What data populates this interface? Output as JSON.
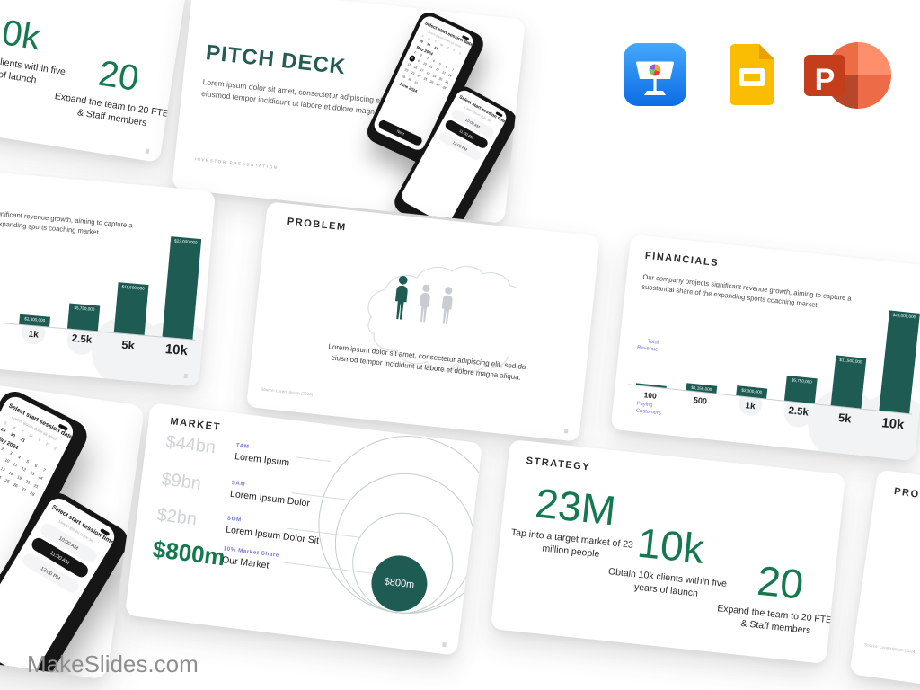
{
  "brand": {
    "label": "MakeSlides.com"
  },
  "app_icons": [
    {
      "name": "apple-keynote"
    },
    {
      "name": "google-slides"
    },
    {
      "name": "microsoft-powerpoint"
    }
  ],
  "colors": {
    "teal_heading": "#265c55",
    "stat_green": "#15794f",
    "bar_teal": "#1d5b53",
    "label_purple": "#7579dd",
    "muted_amount": "#cfd4d9"
  },
  "slides": {
    "pitch_deck": {
      "title": "PITCH DECK",
      "body": "Lorem ipsum dolor sit amet, consectetur adipiscing elit, sed do eiusmod tempor incididunt ut labore et dolore magna aliqua",
      "footer": "INVESTOR PRESENTATION"
    },
    "phone_date": {
      "header": "Select start session date",
      "subtext": "Lorem ipsum dolor sit amet",
      "weekdays": [
        "S",
        "M",
        "T",
        "W",
        "T",
        "F",
        "S"
      ],
      "prev_days": [
        "29",
        "30",
        "31"
      ],
      "month": "May 2024",
      "next_month": "June 2024",
      "selected_day": 8,
      "button": "Next"
    },
    "phone_time": {
      "header": "Select start session time",
      "subtext": "Lorem ipsum dolor sit",
      "slots": [
        "10:00 AM",
        "11:00 AM",
        "12:00 PM"
      ],
      "selected_index": 1
    },
    "problem": {
      "title": "PROBLEM",
      "body": "Lorem ipsum dolor sit amet, consectetur adipiscing elit, sed do eiusmod tempor incididunt ut labore et dolore magna aliqua.",
      "source": "Source: Lorem Ipsum (2024)"
    },
    "financials": {
      "title": "FINANCIALS",
      "body": "Our company projects significant revenue growth, aiming to capture a substantial share of the expanding sports coaching market.",
      "chart": {
        "type": "bar",
        "y_axis_label": "Total\nRevenue",
        "x_axis_label": "Paying\nCustomers",
        "categories": [
          "100",
          "500",
          "1k",
          "2.5k",
          "5k",
          "10k"
        ],
        "values": [
          230000,
          1150000,
          2300000,
          5750000,
          11500000,
          23000000
        ],
        "bar_labels": [
          "",
          "$1,150,000",
          "$2,300,000",
          "$5,750,000",
          "$11,500,000",
          "$23,000,000"
        ]
      }
    },
    "market": {
      "title": "MARKET",
      "rows": [
        {
          "amount": "$44bn",
          "tag": "TAM",
          "name": "Lorem Ipsum"
        },
        {
          "amount": "$9bn",
          "tag": "SAM",
          "name": "Lorem Ipsum Dolor"
        },
        {
          "amount": "$2bn",
          "tag": "SOM",
          "name": "Lorem Ipsum Dolor Sit"
        },
        {
          "amount": "$800m",
          "tag": "10% Market Share",
          "name": "Our Market"
        }
      ],
      "bubble_label": "$800m"
    },
    "strategy": {
      "title": "STRATEGY",
      "stats": [
        {
          "value": "23M",
          "caption": "Tap into a target market of 23 million people"
        },
        {
          "value": "10k",
          "caption": "Obtain 10k clients within five years of launch"
        },
        {
          "value": "20",
          "caption": "Expand the team to 20 FTEs & Staff members"
        }
      ]
    }
  }
}
